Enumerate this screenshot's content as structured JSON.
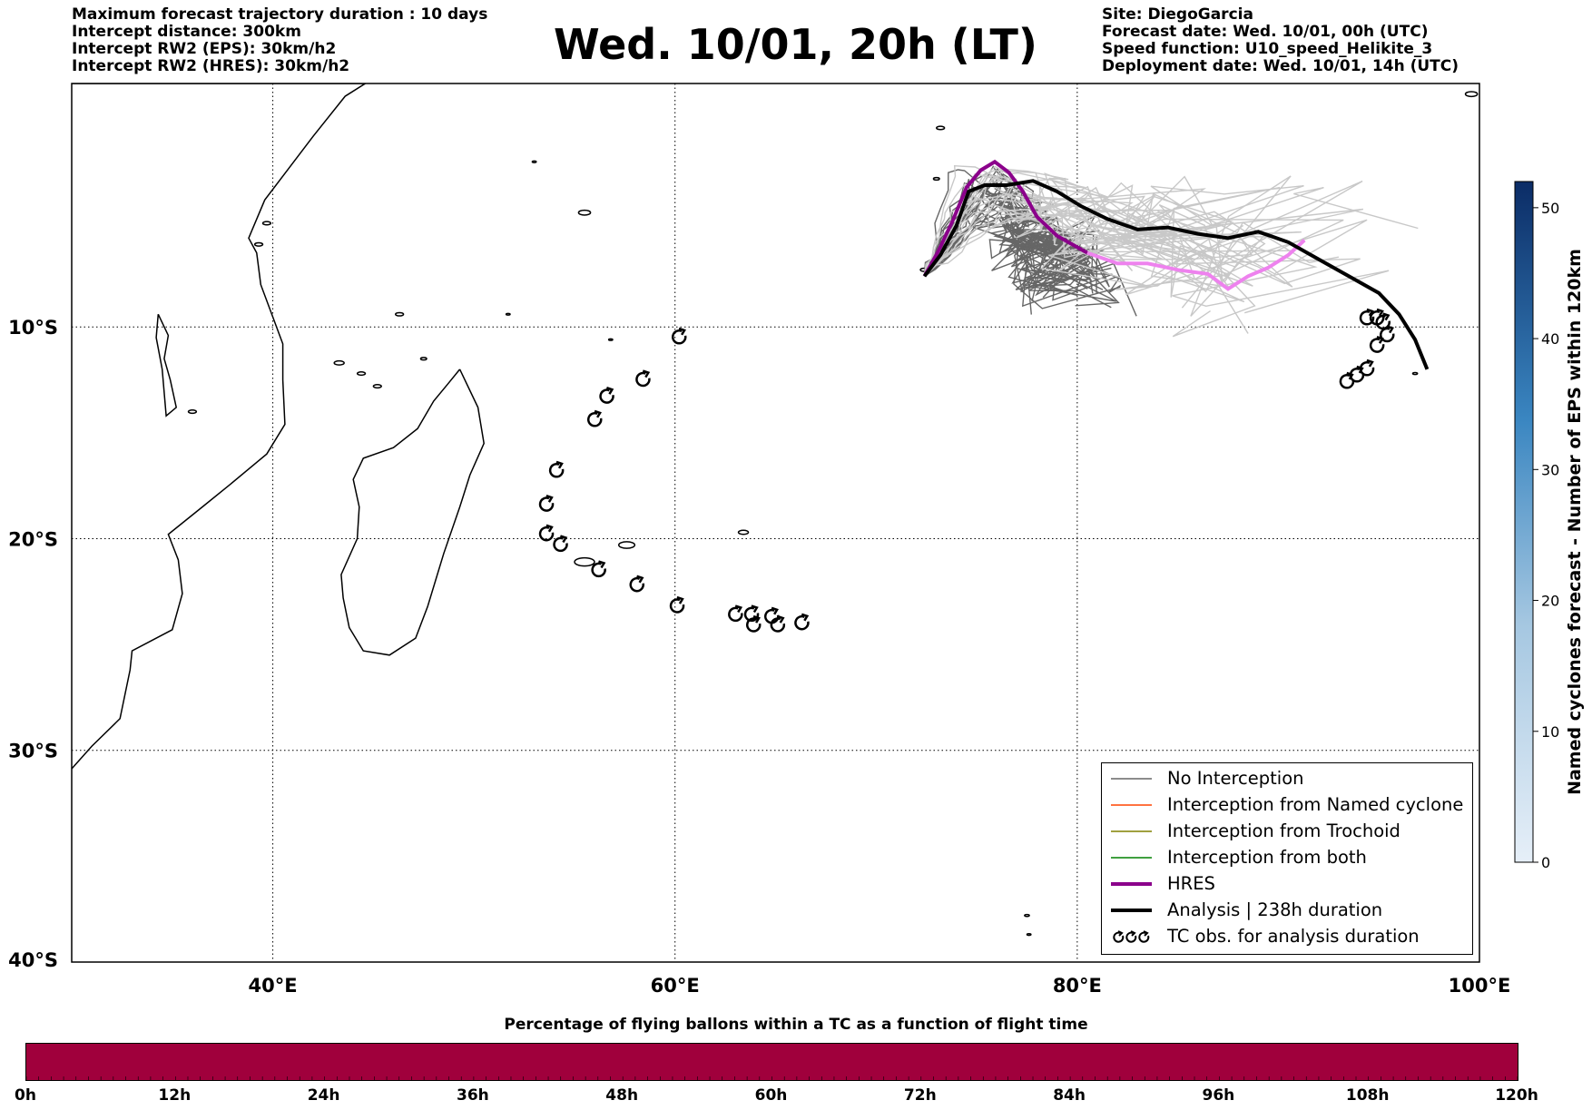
{
  "header_left": [
    "Maximum forecast trajectory duration : 10 days",
    "Intercept distance: 300km",
    "Intercept RW2 (EPS):  30km/h2",
    "Intercept RW2 (HRES): 30km/h2"
  ],
  "title": "Wed. 10/01, 20h (LT)",
  "header_right": [
    "Site: DiegoGarcia",
    "Forecast date: Wed. 10/01, 00h (UTC)",
    "Speed function: U10_speed_Helikite_3",
    "Deployment date: Wed. 10/01, 14h (UTC)"
  ],
  "map": {
    "lon_range": [
      30,
      100
    ],
    "lat_range": [
      -40,
      1.5
    ],
    "lat_grid": [
      -10,
      -20,
      -30
    ],
    "lon_grid": [
      40,
      60,
      80
    ],
    "lat_labels": [
      "10°S",
      "20°S",
      "30°S",
      "40°S"
    ],
    "lon_labels": [
      "40°E",
      "60°E",
      "80°E",
      "100°E"
    ],
    "colors": {
      "no_interception": "#666666",
      "eps_light": "#c8c8c8",
      "named_cyclone": "#ff4500",
      "trochoid": "#808000",
      "both": "#008000",
      "hres_early": "#8b008b",
      "hres_late": "#ee82ee",
      "analysis": "#000000"
    },
    "analysis_track": [
      [
        72.4,
        -7.6
      ],
      [
        73.2,
        -6.6
      ],
      [
        74.0,
        -5.2
      ],
      [
        74.6,
        -3.6
      ],
      [
        75.4,
        -3.3
      ],
      [
        76.5,
        -3.3
      ],
      [
        77.8,
        -3.1
      ],
      [
        79.0,
        -3.6
      ],
      [
        80.2,
        -4.3
      ],
      [
        81.5,
        -4.9
      ],
      [
        83.0,
        -5.4
      ],
      [
        84.5,
        -5.3
      ],
      [
        86.0,
        -5.6
      ],
      [
        87.5,
        -5.8
      ],
      [
        89.0,
        -5.5
      ],
      [
        90.5,
        -6.0
      ],
      [
        92.0,
        -6.8
      ],
      [
        93.5,
        -7.6
      ],
      [
        95.0,
        -8.4
      ],
      [
        96.0,
        -9.4
      ],
      [
        96.8,
        -10.6
      ],
      [
        97.4,
        -12.0
      ]
    ],
    "hres_track": [
      [
        72.4,
        -7.6
      ],
      [
        73.1,
        -6.4
      ],
      [
        73.8,
        -5.0
      ],
      [
        74.5,
        -3.4
      ],
      [
        75.2,
        -2.6
      ],
      [
        75.9,
        -2.2
      ],
      [
        76.6,
        -2.7
      ],
      [
        77.3,
        -3.6
      ],
      [
        78.0,
        -4.8
      ],
      [
        79.0,
        -5.7
      ],
      [
        80.5,
        -6.5
      ],
      [
        82.0,
        -7.0
      ],
      [
        83.5,
        -7.0
      ],
      [
        85.0,
        -7.3
      ],
      [
        86.5,
        -7.5
      ],
      [
        87.5,
        -8.2
      ],
      [
        88.5,
        -7.6
      ],
      [
        89.5,
        -7.2
      ],
      [
        90.5,
        -6.6
      ],
      [
        91.3,
        -5.9
      ]
    ],
    "tc_obs": [
      [
        60.2,
        -10.5
      ],
      [
        58.4,
        -12.5
      ],
      [
        56.6,
        -13.3
      ],
      [
        56.0,
        -14.4
      ],
      [
        54.1,
        -16.8
      ],
      [
        53.6,
        -18.4
      ],
      [
        53.6,
        -19.8
      ],
      [
        54.3,
        -20.3
      ],
      [
        56.2,
        -21.5
      ],
      [
        58.1,
        -22.2
      ],
      [
        60.1,
        -23.2
      ],
      [
        63.0,
        -23.6
      ],
      [
        63.8,
        -23.6
      ],
      [
        63.9,
        -24.1
      ],
      [
        64.8,
        -23.7
      ],
      [
        65.1,
        -24.1
      ],
      [
        66.3,
        -24.0
      ],
      [
        94.4,
        -9.6
      ],
      [
        94.9,
        -9.6
      ],
      [
        95.2,
        -9.8
      ],
      [
        95.4,
        -10.4
      ],
      [
        94.9,
        -10.9
      ],
      [
        94.4,
        -12.0
      ],
      [
        93.9,
        -12.3
      ],
      [
        93.4,
        -12.6
      ]
    ]
  },
  "legend": {
    "items": [
      {
        "label": "No Interception",
        "color": "#666666",
        "width": 1.5
      },
      {
        "label": "Interception from Named cyclone",
        "color": "#ff4500",
        "width": 1.5
      },
      {
        "label": "Interception from Trochoid",
        "color": "#808000",
        "width": 1.5
      },
      {
        "label": "Interception from both",
        "color": "#008000",
        "width": 1.5
      },
      {
        "label": "HRES",
        "color": "#8b008b",
        "width": 4
      },
      {
        "label": "Analysis | 238h duration",
        "color": "#000000",
        "width": 4
      }
    ],
    "tc_label": "TC obs. for analysis duration"
  },
  "colorbar": {
    "title": "Named cyclones forecast - Number of EPS within 120km",
    "min": 0,
    "max": 52,
    "ticks": [
      0,
      10,
      20,
      30,
      40,
      50
    ],
    "color_low": "#e6eff8",
    "color_high": "#0b2c66"
  },
  "bottom_bar": {
    "title": "Percentage of flying ballons within a TC as a function of flight time",
    "color": "#a0003c",
    "labels": [
      "0h",
      "12h",
      "24h",
      "36h",
      "48h",
      "60h",
      "72h",
      "84h",
      "96h",
      "108h",
      "120h"
    ]
  }
}
